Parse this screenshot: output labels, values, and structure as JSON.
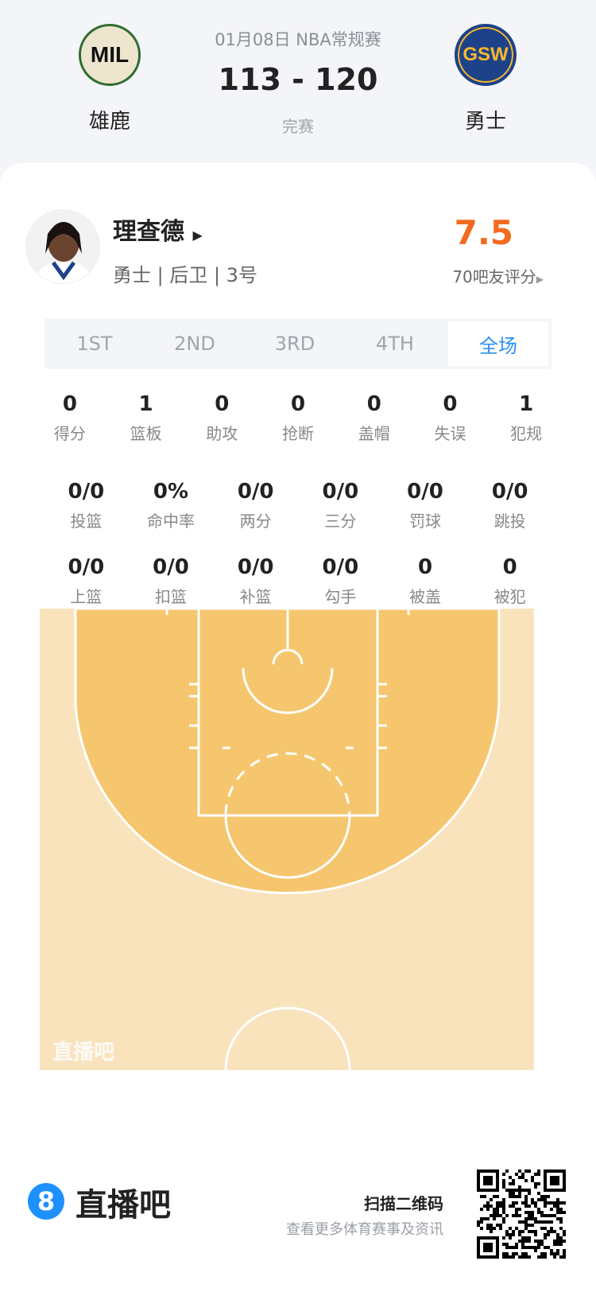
{
  "match": {
    "date_league": "01月08日 NBA常规赛",
    "score": "113 - 120",
    "status": "完赛",
    "home": {
      "abbr": "MIL",
      "name": "雄鹿"
    },
    "away": {
      "abbr": "GSW",
      "name": "勇士"
    }
  },
  "player": {
    "name": "理查德",
    "info": "勇士 | 后卫 | 3号",
    "rating": "7.5",
    "rating_label": "70吧友评分",
    "rating_color": "#f26b21"
  },
  "tabs": [
    {
      "label": "1ST"
    },
    {
      "label": "2ND"
    },
    {
      "label": "3RD"
    },
    {
      "label": "4TH"
    },
    {
      "label": "全场",
      "active": true
    }
  ],
  "stats_row1": [
    {
      "v": "0",
      "l": "得分"
    },
    {
      "v": "1",
      "l": "篮板"
    },
    {
      "v": "0",
      "l": "助攻"
    },
    {
      "v": "0",
      "l": "抢断"
    },
    {
      "v": "0",
      "l": "盖帽"
    },
    {
      "v": "0",
      "l": "失误"
    },
    {
      "v": "1",
      "l": "犯规"
    }
  ],
  "stats_row2": [
    {
      "v": "0/0",
      "l": "投篮"
    },
    {
      "v": "0%",
      "l": "命中率"
    },
    {
      "v": "0/0",
      "l": "两分"
    },
    {
      "v": "0/0",
      "l": "三分"
    },
    {
      "v": "0/0",
      "l": "罚球"
    },
    {
      "v": "0/0",
      "l": "跳投"
    }
  ],
  "stats_row3": [
    {
      "v": "0/0",
      "l": "上篮"
    },
    {
      "v": "0/0",
      "l": "扣篮"
    },
    {
      "v": "0/0",
      "l": "补篮"
    },
    {
      "v": "0/0",
      "l": "勾手"
    },
    {
      "v": "0",
      "l": "被盖"
    },
    {
      "v": "0",
      "l": "被犯"
    }
  ],
  "court": {
    "watermark": "直播吧",
    "outer_color": "#f8e3bd",
    "inner_color": "#f5c66e"
  },
  "footer": {
    "brand": "直播吧",
    "scan": "扫描二维码",
    "sub": "查看更多体育赛事及资讯",
    "accent": "#1e90ff"
  }
}
